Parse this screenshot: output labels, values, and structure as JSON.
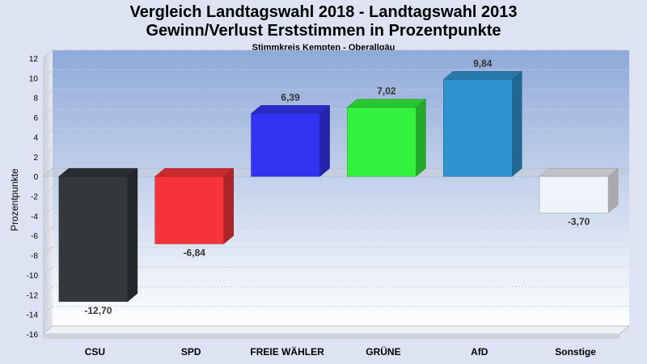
{
  "chart_data": {
    "type": "bar",
    "title": "Vergleich Landtagswahl 2018 - Landtagswahl 2013",
    "subtitle": "Gewinn/Verlust Erststimmen in Prozentpunkte",
    "caption": "Stimmkreis Kempten - Oberallgäu",
    "ylabel": "Prozentpunkte",
    "xlabel": "",
    "ylim": [
      -16,
      12
    ],
    "yticks": [
      12,
      10,
      8,
      6,
      4,
      2,
      0,
      -2,
      -4,
      -6,
      -8,
      -10,
      -12,
      -14,
      -16
    ],
    "grid": true,
    "categories": [
      "CSU",
      "SPD",
      "FREIE WÄHLER",
      "GRÜNE",
      "AfD",
      "Sonstige"
    ],
    "values": [
      -12.7,
      -6.84,
      6.39,
      7.02,
      9.84,
      -3.7
    ],
    "value_labels": [
      "-12,70",
      "-6,84",
      "6,39",
      "7,02",
      "9,84",
      "-3,70"
    ],
    "colors": [
      "#34373b",
      "#f5333b",
      "#3333f2",
      "#33f23b",
      "#2e93cf",
      "#f0f3fa"
    ]
  }
}
